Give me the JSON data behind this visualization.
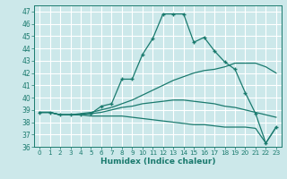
{
  "xlabel": "Humidex (Indice chaleur)",
  "xlim": [
    -0.5,
    23.5
  ],
  "ylim": [
    36,
    47.5
  ],
  "yticks": [
    36,
    37,
    38,
    39,
    40,
    41,
    42,
    43,
    44,
    45,
    46,
    47
  ],
  "xticks": [
    0,
    1,
    2,
    3,
    4,
    5,
    6,
    7,
    8,
    9,
    10,
    11,
    12,
    13,
    14,
    15,
    16,
    17,
    18,
    19,
    20,
    21,
    22,
    23
  ],
  "bg_color": "#cce8ea",
  "grid_color": "#ffffff",
  "line_color": "#1a7a6e",
  "lines": [
    {
      "x": [
        0,
        1,
        2,
        3,
        4,
        5,
        6,
        7,
        8,
        9,
        10,
        11,
        12,
        13,
        14,
        15,
        16,
        17,
        18,
        19,
        20,
        21,
        22,
        23
      ],
      "y": [
        38.8,
        38.8,
        38.6,
        38.6,
        38.6,
        38.7,
        39.3,
        39.5,
        41.5,
        41.5,
        43.5,
        44.8,
        46.8,
        46.8,
        46.8,
        44.5,
        44.9,
        43.8,
        42.9,
        42.3,
        40.4,
        38.7,
        36.3,
        37.6
      ],
      "marker": "+"
    },
    {
      "x": [
        0,
        1,
        2,
        3,
        4,
        5,
        6,
        7,
        8,
        9,
        10,
        11,
        12,
        13,
        14,
        15,
        16,
        17,
        18,
        19,
        20,
        21,
        22,
        23
      ],
      "y": [
        38.8,
        38.8,
        38.6,
        38.6,
        38.7,
        38.8,
        39.0,
        39.2,
        39.5,
        39.8,
        40.2,
        40.6,
        41.0,
        41.4,
        41.7,
        42.0,
        42.2,
        42.3,
        42.5,
        42.8,
        42.8,
        42.8,
        42.5,
        42.0
      ],
      "marker": null
    },
    {
      "x": [
        0,
        1,
        2,
        3,
        4,
        5,
        6,
        7,
        8,
        9,
        10,
        11,
        12,
        13,
        14,
        15,
        16,
        17,
        18,
        19,
        20,
        21,
        22,
        23
      ],
      "y": [
        38.8,
        38.8,
        38.6,
        38.6,
        38.6,
        38.7,
        38.8,
        39.0,
        39.2,
        39.3,
        39.5,
        39.6,
        39.7,
        39.8,
        39.8,
        39.7,
        39.6,
        39.5,
        39.3,
        39.2,
        39.0,
        38.8,
        38.6,
        38.4
      ],
      "marker": null
    },
    {
      "x": [
        0,
        1,
        2,
        3,
        4,
        5,
        6,
        7,
        8,
        9,
        10,
        11,
        12,
        13,
        14,
        15,
        16,
        17,
        18,
        19,
        20,
        21,
        22,
        23
      ],
      "y": [
        38.8,
        38.8,
        38.6,
        38.6,
        38.6,
        38.5,
        38.5,
        38.5,
        38.5,
        38.4,
        38.3,
        38.2,
        38.1,
        38.0,
        37.9,
        37.8,
        37.8,
        37.7,
        37.6,
        37.6,
        37.6,
        37.5,
        36.3,
        37.6
      ],
      "marker": null
    }
  ]
}
